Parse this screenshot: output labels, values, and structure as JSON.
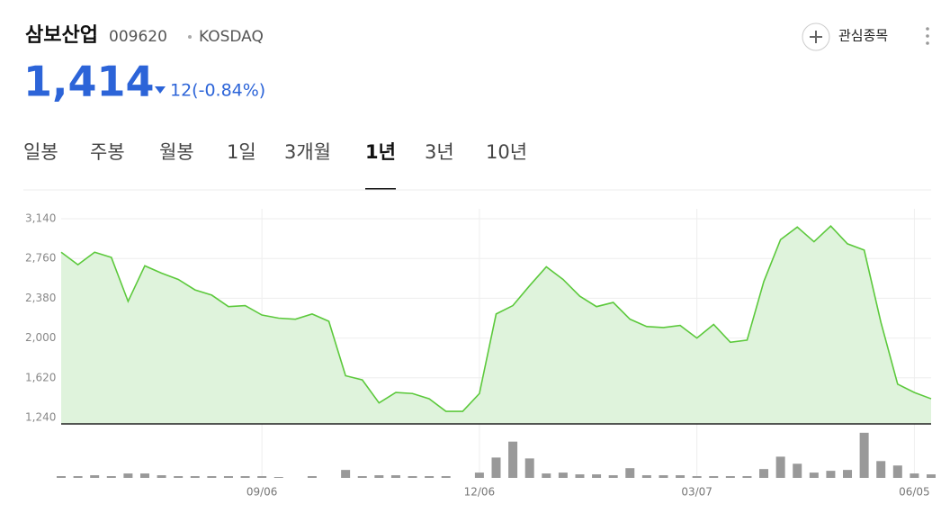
{
  "header": {
    "name": "삼보산업",
    "code": "009620",
    "market": "KOSDAQ",
    "watch": "관심종목",
    "price": "1,414",
    "change": "12(-0.84%)"
  },
  "tabs": [
    "일봉",
    "주봉",
    "월봉",
    "1일",
    "3개월",
    "1년",
    "3년",
    "10년"
  ],
  "selected_tab": 5,
  "chart_data": [
    {
      "type": "line",
      "color": "#5cc93c",
      "fill": "#dff3dc",
      "grid": true,
      "categories": [
        null,
        null,
        null,
        null,
        null,
        null,
        null,
        null,
        null,
        null,
        null,
        null,
        "09/06",
        null,
        null,
        null,
        null,
        null,
        null,
        null,
        null,
        null,
        null,
        null,
        null,
        "12/06",
        null,
        null,
        null,
        null,
        null,
        null,
        null,
        null,
        null,
        null,
        null,
        null,
        "03/07",
        null,
        null,
        null,
        null,
        null,
        null,
        null,
        null,
        null,
        null,
        null,
        null,
        "06/05",
        null
      ],
      "values": [
        2820,
        2700,
        2820,
        2770,
        2350,
        2690,
        2620,
        2560,
        2460,
        2410,
        2300,
        2310,
        2220,
        2190,
        2180,
        2230,
        2160,
        1640,
        1600,
        1380,
        1480,
        1470,
        1420,
        1300,
        1300,
        1470,
        2230,
        2310,
        2500,
        2680,
        2560,
        2400,
        2300,
        2340,
        2180,
        2110,
        2100,
        2120,
        2000,
        2130,
        1960,
        1980,
        2540,
        2940,
        3060,
        2920,
        3070,
        2900,
        2840,
        2150,
        1560,
        1480,
        1420
      ],
      "ylim": [
        1240,
        3140
      ],
      "yticks": [
        {
          "value": 1240,
          "label": "1,240"
        },
        {
          "value": 1620,
          "label": "1,620"
        },
        {
          "value": 2000,
          "label": "2,000"
        },
        {
          "value": 2380,
          "label": "2,380"
        },
        {
          "value": 2760,
          "label": "2,760"
        },
        {
          "value": 3140,
          "label": "3,140"
        }
      ]
    },
    {
      "type": "bar",
      "color": "#999999",
      "ylim": [
        0,
        60
      ],
      "values": [
        2,
        2,
        3,
        2,
        5,
        5,
        3,
        2,
        2,
        2,
        2,
        2,
        2,
        1,
        0,
        2,
        0,
        9,
        2,
        3,
        3,
        2,
        2,
        2,
        0,
        6,
        23,
        41,
        22,
        5,
        6,
        4,
        4,
        3,
        11,
        3,
        3,
        3,
        2,
        2,
        2,
        2,
        10,
        24,
        16,
        6,
        8,
        9,
        51,
        19,
        14,
        5,
        4
      ]
    }
  ]
}
